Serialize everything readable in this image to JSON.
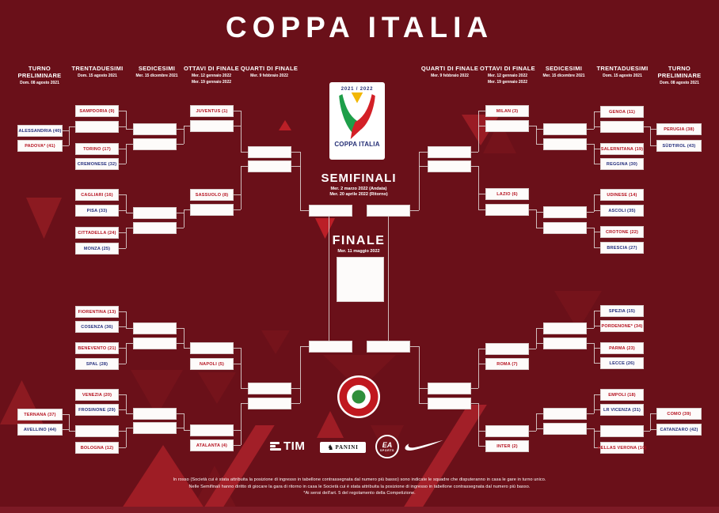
{
  "title": "COPPA ITALIA",
  "headers": [
    {
      "title": "TURNO PRELIMINARE",
      "date1": "Dom. 08 agosto 2021",
      "date2": ""
    },
    {
      "title": "TRENTADUESIMI",
      "date1": "Dom. 15 agosto 2021",
      "date2": ""
    },
    {
      "title": "SEDICESIMI",
      "date1": "Mer. 15 dicembre 2021",
      "date2": ""
    },
    {
      "title": "OTTAVI DI FINALE",
      "date1": "Mer. 12 gennaio 2022",
      "date2": "Mer. 19 gennaio 2022"
    },
    {
      "title": "QUARTI DI FINALE",
      "date1": "Mer. 9 febbraio 2022",
      "date2": ""
    },
    {
      "title": "QUARTI DI FINALE",
      "date1": "Mer. 9 febbraio 2022",
      "date2": ""
    },
    {
      "title": "OTTAVI DI FINALE",
      "date1": "Mer. 12 gennaio 2022",
      "date2": "Mer. 19 gennaio 2022"
    },
    {
      "title": "SEDICESIMI",
      "date1": "Mer. 15 dicembre 2021",
      "date2": ""
    },
    {
      "title": "TRENTADUESIMI",
      "date1": "Dom. 15 agosto 2021",
      "date2": ""
    },
    {
      "title": "TURNO PRELIMINARE",
      "date1": "Dom. 08 agosto 2021",
      "date2": ""
    }
  ],
  "center": {
    "season": "2021 / 2022",
    "logo_name": "COPPA ITALIA",
    "semifinali_title": "SEMIFINALI",
    "semifinali_date_andata": "Mer. 2 marzo 2022 (Andata)",
    "semifinali_date_ritorno": "Mer. 20 aprile 2022 (Ritorno)",
    "finale_title": "FINALE",
    "finale_date": "Mer. 11 maggio 2022"
  },
  "bracket": {
    "lt_prelim": [
      {
        "label": "ALESSANDRIA (40)",
        "color": "blue"
      },
      {
        "label": "PADOVA* (41)",
        "color": "red"
      }
    ],
    "lt_r32": [
      {
        "label": "SAMPDORIA (9)",
        "color": "red"
      },
      {
        "label": "",
        "color": ""
      },
      {
        "label": "TORINO (17)",
        "color": "red"
      },
      {
        "label": "CREMONESE (32)",
        "color": "blue"
      },
      {
        "label": "CAGLIARI (16)",
        "color": "red"
      },
      {
        "label": "PISA (33)",
        "color": "blue"
      },
      {
        "label": "CITTADELLA (24)",
        "color": "red"
      },
      {
        "label": "MONZA (25)",
        "color": "blue"
      }
    ],
    "lt_r8": [
      {
        "label": "JUVENTUS (1)",
        "color": "red"
      },
      {
        "label": "",
        "color": ""
      },
      {
        "label": "SASSUOLO (8)",
        "color": "red"
      },
      {
        "label": "",
        "color": ""
      }
    ],
    "lb_prelim": [
      {
        "label": "TERNANA (37)",
        "color": "red"
      },
      {
        "label": "AVELLINO (44)",
        "color": "blue"
      }
    ],
    "lb_r32": [
      {
        "label": "FIORENTINA (13)",
        "color": "red"
      },
      {
        "label": "COSENZA (36)",
        "color": "blue"
      },
      {
        "label": "BENEVENTO (21)",
        "color": "red"
      },
      {
        "label": "SPAL (28)",
        "color": "blue"
      },
      {
        "label": "VENEZIA (20)",
        "color": "red"
      },
      {
        "label": "FROSINONE (29)",
        "color": "blue"
      },
      {
        "label": "",
        "color": ""
      },
      {
        "label": "BOLOGNA (12)",
        "color": "red"
      }
    ],
    "lb_r8": [
      {
        "label": "",
        "color": ""
      },
      {
        "label": "NAPOLI (5)",
        "color": "red"
      },
      {
        "label": "",
        "color": ""
      },
      {
        "label": "ATALANTA (4)",
        "color": "red"
      }
    ],
    "rt_prelim": [
      {
        "label": "PERUGIA (38)",
        "color": "red"
      },
      {
        "label": "SÜDTIROL (43)",
        "color": "blue"
      }
    ],
    "rt_r32": [
      {
        "label": "GENOA (11)",
        "color": "red"
      },
      {
        "label": "",
        "color": ""
      },
      {
        "label": "SALERNITANA (19)",
        "color": "red"
      },
      {
        "label": "REGGINA (30)",
        "color": "blue"
      },
      {
        "label": "UDINESE (14)",
        "color": "red"
      },
      {
        "label": "ASCOLI (35)",
        "color": "blue"
      },
      {
        "label": "CROTONE (22)",
        "color": "red"
      },
      {
        "label": "BRESCIA (27)",
        "color": "blue"
      }
    ],
    "rt_r8": [
      {
        "label": "MILAN (3)",
        "color": "red"
      },
      {
        "label": "",
        "color": ""
      },
      {
        "label": "LAZIO (6)",
        "color": "red"
      },
      {
        "label": "",
        "color": ""
      }
    ],
    "rb_prelim": [
      {
        "label": "COMO (39)",
        "color": "red"
      },
      {
        "label": "CATANZARO (42)",
        "color": "blue"
      }
    ],
    "rb_r32": [
      {
        "label": "SPEZIA (15)",
        "color": "blue"
      },
      {
        "label": "PORDENONE* (34)",
        "color": "red"
      },
      {
        "label": "PARMA (23)",
        "color": "red"
      },
      {
        "label": "LECCE (26)",
        "color": "blue"
      },
      {
        "label": "EMPOLI (18)",
        "color": "red"
      },
      {
        "label": "LR VICENZA (31)",
        "color": "blue"
      },
      {
        "label": "",
        "color": ""
      },
      {
        "label": "HELLAS VERONA (10)",
        "color": "red"
      }
    ],
    "rb_r8": [
      {
        "label": "",
        "color": ""
      },
      {
        "label": "ROMA (7)",
        "color": "red"
      },
      {
        "label": "",
        "color": ""
      },
      {
        "label": "INTER (2)",
        "color": "red"
      }
    ]
  },
  "sponsors": {
    "tim": "TIM",
    "panini": "PANINI",
    "ea_line1": "EA",
    "ea_line2": "SPORTS"
  },
  "footer": {
    "line1": "In rosso (Società cui è stata attribuita la posizione di ingresso in tabellone contrassegnata dal numero più basso) sono indicate le squadre che disputeranno in casa le gare in turno unico.",
    "line2": "Nelle Semifinali hanno diritto di giocare la gara di ritorno in casa le Società cui è stata attribuita la posizione di ingresso in tabellone contrassegnata dal numero più basso.",
    "line3": "*Ai sensi dell'art. 5 del regolamento della Competizione."
  },
  "colors": {
    "background": "#6a1019",
    "team_home_red": "#b5121f",
    "team_away_blue": "#232e7d",
    "box_white": "#fdfbfa"
  }
}
